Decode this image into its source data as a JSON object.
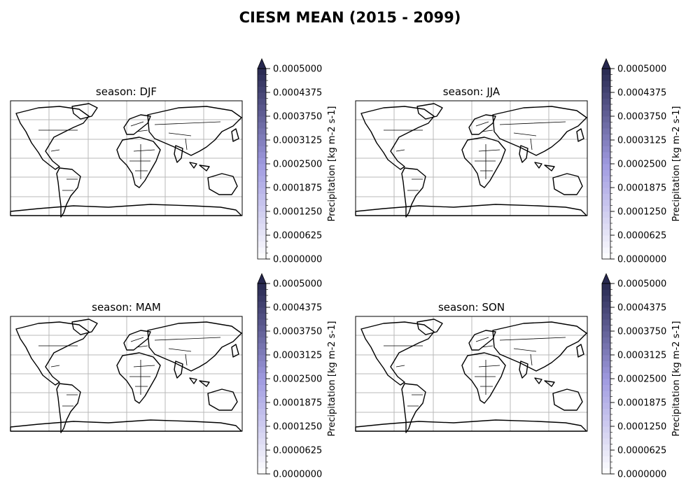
{
  "figure": {
    "title": "CIESM MEAN (2015 - 2099)"
  },
  "panels": [
    {
      "title": "season: DJF"
    },
    {
      "title": "season: JJA"
    },
    {
      "title": "season: MAM"
    },
    {
      "title": "season: SON"
    }
  ],
  "colorbar": {
    "label": "Precipitation [kg m-2 s-1]",
    "ticks": [
      "0.0005000",
      "0.0004375",
      "0.0003750",
      "0.0003125",
      "0.0002500",
      "0.0001875",
      "0.0001250",
      "0.0000625",
      "0.0000000"
    ],
    "vmin": 0.0,
    "vmax": 0.0005,
    "extend": "max",
    "cmap_low": "#ffffff",
    "cmap_mid": "#9f9ae0",
    "cmap_high": "#27284f"
  },
  "map": {
    "projection": "PlateCarree",
    "gridlines": true,
    "coastlines": true,
    "borders": true,
    "data_shown": "none (field renders blank/below range)"
  }
}
